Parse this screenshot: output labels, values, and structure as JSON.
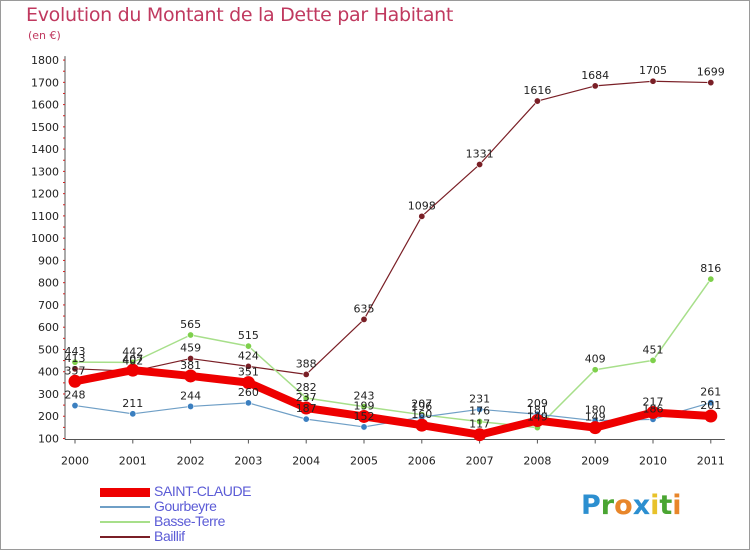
{
  "title": "Evolution du Montant de la Dette par Habitant",
  "subtitle": "(en €)",
  "chart_data": {
    "type": "line",
    "title": "Evolution du Montant de la Dette par Habitant",
    "subtitle": "(en €)",
    "ylim": [
      100,
      1800
    ],
    "yticks": [
      100,
      200,
      300,
      400,
      500,
      600,
      700,
      800,
      900,
      1000,
      1100,
      1200,
      1300,
      1400,
      1500,
      1600,
      1700,
      1800
    ],
    "categories": [
      "2000",
      "2001",
      "2002",
      "2003",
      "2004",
      "2005",
      "2006",
      "2007",
      "2008",
      "2009",
      "2010",
      "2011"
    ],
    "legend_position": "bottom-left",
    "grid": false,
    "series": [
      {
        "name": "Baillif",
        "color": "#7a1f26",
        "width": 1.2,
        "values": [
          413,
          402,
          459,
          424,
          388,
          635,
          1098,
          1331,
          1616,
          1684,
          1705,
          1699
        ]
      },
      {
        "name": "Basse-Terre",
        "color": "#a7df8a",
        "marker": "#7ed04b",
        "width": 1.5,
        "values": [
          443,
          442,
          565,
          515,
          282,
          243,
          207,
          176,
          149,
          409,
          451,
          816
        ]
      },
      {
        "name": "Gourbeyre",
        "color": "#6f9fc6",
        "marker": "#3b7fc0",
        "width": 1.2,
        "values": [
          248,
          211,
          244,
          260,
          187,
          152,
          196,
          231,
          209,
          180,
          186,
          261
        ]
      },
      {
        "name": "SAINT-CLAUDE",
        "color": "#ee0000",
        "width": 8,
        "values": [
          357,
          407,
          381,
          351,
          237,
          199,
          160,
          117,
          181,
          149,
          217,
          201
        ]
      }
    ]
  },
  "legend": [
    {
      "label": "SAINT-CLAUDE",
      "color": "#ee0000",
      "thickness": 9,
      "text_color": "#5b5bd6"
    },
    {
      "label": "Gourbeyre",
      "color": "#6f9fc6",
      "thickness": 2,
      "text_color": "#5b5bd6"
    },
    {
      "label": "Basse-Terre",
      "color": "#a7df8a",
      "thickness": 2,
      "text_color": "#5b5bd6"
    },
    {
      "label": "Baillif",
      "color": "#7a1f26",
      "thickness": 2,
      "text_color": "#5b5bd6"
    }
  ],
  "logo": {
    "letters": [
      "P",
      "r",
      "o",
      "x",
      "i",
      "t",
      "i"
    ],
    "colors": [
      "#2c8fd0",
      "#4aa532",
      "#e8862a",
      "#2c8fd0",
      "#e8c22a",
      "#4aa532",
      "#e8862a"
    ]
  }
}
